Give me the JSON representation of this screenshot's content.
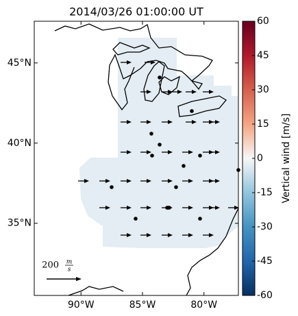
{
  "chart_data": {
    "type": "map",
    "title": "2014/03/26 01:00:00 UT",
    "xlim": [
      -93.8,
      -77.2
    ],
    "ylim": [
      30.5,
      47.6
    ],
    "xticks": [
      {
        "value": -90,
        "label": "90°W"
      },
      {
        "value": -85,
        "label": "85°W"
      },
      {
        "value": -80,
        "label": "80°W"
      }
    ],
    "yticks": [
      {
        "value": 35,
        "label": "35°N"
      },
      {
        "value": 40,
        "label": "40°N"
      },
      {
        "value": 45,
        "label": "45°N"
      }
    ],
    "quiver_key": {
      "value": "200",
      "unit_num": "m",
      "unit_den": "s"
    },
    "colorbar": {
      "label": "Vertical wind [m/s]",
      "clim": [
        -60,
        60
      ],
      "ticks": [
        -60,
        -45,
        -30,
        -15,
        0,
        15,
        30,
        45,
        60
      ],
      "colors": [
        "#053061",
        "#2166ac",
        "#4393c3",
        "#92c5de",
        "#f7f7f7",
        "#f4a582",
        "#d6604d",
        "#b2182b",
        "#67001f"
      ]
    }
  }
}
